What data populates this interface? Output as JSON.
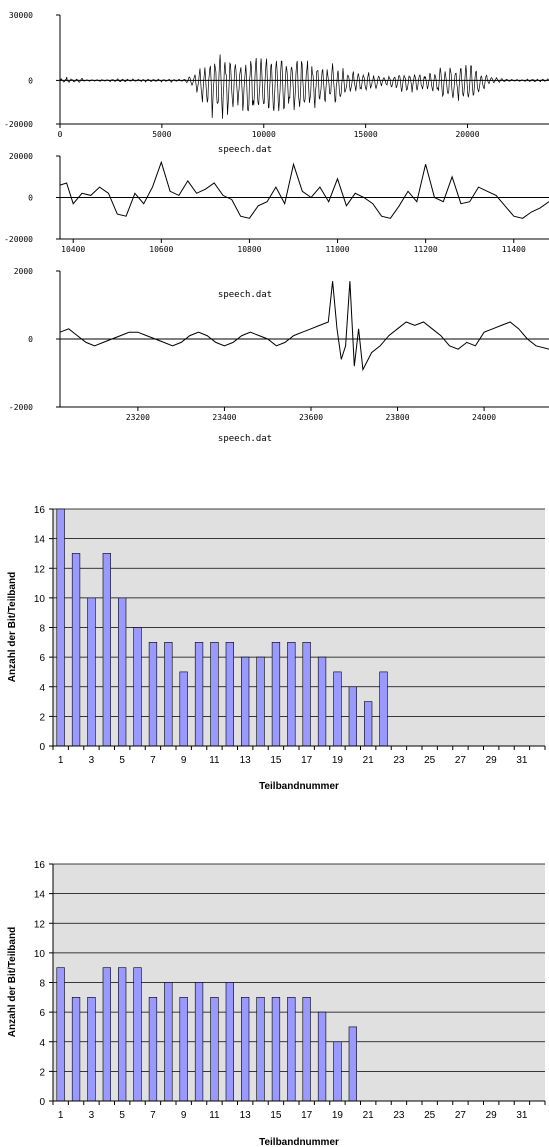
{
  "chart_data": [
    {
      "type": "line",
      "xlabel": "speech.dat",
      "ylabel": "",
      "xlim": [
        0,
        24000
      ],
      "ylim": [
        -20000,
        30000
      ],
      "x_ticks": [
        "0",
        "5000",
        "10000",
        "15000",
        "20000"
      ],
      "y_ticks": [
        "30000",
        "0",
        "-20000"
      ],
      "series_description_points": [
        [
          0,
          0
        ],
        [
          1500,
          400
        ],
        [
          3000,
          0
        ],
        [
          4500,
          0
        ],
        [
          6000,
          0
        ],
        [
          6500,
          3000
        ],
        [
          7500,
          15000
        ],
        [
          8500,
          12000
        ],
        [
          9500,
          14000
        ],
        [
          10500,
          12000
        ],
        [
          11500,
          13000
        ],
        [
          12500,
          10000
        ],
        [
          13500,
          9000
        ],
        [
          14500,
          4000
        ],
        [
          15000,
          5000
        ],
        [
          16000,
          2000
        ],
        [
          17000,
          5000
        ],
        [
          18000,
          4000
        ],
        [
          19000,
          8000
        ],
        [
          20000,
          9000
        ],
        [
          20500,
          7000
        ],
        [
          21000,
          2000
        ],
        [
          22000,
          500
        ],
        [
          24000,
          0
        ]
      ]
    },
    {
      "type": "line",
      "xlabel": "speech.dat",
      "ylabel": "",
      "xlim": [
        10370,
        11480
      ],
      "ylim": [
        -20000,
        20000
      ],
      "x_ticks": [
        "10400",
        "10600",
        "10800",
        "11000",
        "11200",
        "11400"
      ],
      "y_ticks": [
        "20000",
        "0",
        "-20000"
      ],
      "x": [
        10370,
        10385,
        10400,
        10420,
        10440,
        10460,
        10480,
        10500,
        10520,
        10540,
        10560,
        10580,
        10600,
        10620,
        10640,
        10660,
        10680,
        10700,
        10720,
        10740,
        10760,
        10780,
        10800,
        10820,
        10840,
        10860,
        10880,
        10900,
        10920,
        10940,
        10960,
        10980,
        11000,
        11020,
        11040,
        11060,
        11080,
        11100,
        11120,
        11140,
        11160,
        11180,
        11200,
        11220,
        11240,
        11260,
        11280,
        11300,
        11320,
        11340,
        11360,
        11380,
        11400,
        11420,
        11440,
        11460,
        11480
      ],
      "y": [
        6000,
        7000,
        -3000,
        2000,
        1000,
        5000,
        2000,
        -8000,
        -9000,
        2000,
        -3000,
        5000,
        17000,
        3000,
        1000,
        8000,
        2000,
        4000,
        7000,
        1000,
        -1000,
        -9000,
        -10000,
        -4000,
        -2000,
        5000,
        -3000,
        16000,
        3000,
        0,
        5000,
        -2000,
        9000,
        -4000,
        2000,
        0,
        -3000,
        -9000,
        -10000,
        -4000,
        3000,
        -2000,
        16000,
        0,
        -2000,
        10000,
        -3000,
        -2000,
        5000,
        3000,
        1000,
        -4000,
        -9000,
        -10000,
        -7000,
        -5000,
        -2000
      ]
    },
    {
      "type": "line",
      "xlabel": "speech.dat",
      "ylabel": "",
      "xlim": [
        23020,
        24150
      ],
      "ylim": [
        -2000,
        2000
      ],
      "x_ticks": [
        "23200",
        "23400",
        "23600",
        "23800",
        "24000"
      ],
      "y_ticks": [
        "2000",
        "0",
        "-2000"
      ],
      "x": [
        23020,
        23040,
        23060,
        23080,
        23100,
        23120,
        23140,
        23160,
        23180,
        23200,
        23220,
        23240,
        23260,
        23280,
        23300,
        23320,
        23340,
        23360,
        23380,
        23400,
        23420,
        23440,
        23460,
        23480,
        23500,
        23520,
        23540,
        23560,
        23580,
        23600,
        23620,
        23640,
        23650,
        23660,
        23670,
        23680,
        23690,
        23700,
        23710,
        23720,
        23740,
        23760,
        23780,
        23800,
        23820,
        23840,
        23860,
        23880,
        23900,
        23920,
        23940,
        23960,
        23980,
        24000,
        24020,
        24040,
        24060,
        24080,
        24100,
        24120,
        24150
      ],
      "y": [
        200,
        300,
        100,
        -100,
        -200,
        -100,
        0,
        100,
        200,
        200,
        100,
        0,
        -100,
        -200,
        -100,
        100,
        200,
        100,
        -100,
        -200,
        -100,
        100,
        200,
        100,
        0,
        -200,
        -100,
        100,
        200,
        300,
        400,
        500,
        1700,
        300,
        -600,
        -200,
        1700,
        -800,
        300,
        -900,
        -400,
        -200,
        100,
        300,
        500,
        400,
        500,
        300,
        100,
        -200,
        -300,
        -100,
        -200,
        200,
        300,
        400,
        500,
        300,
        0,
        -200,
        -300
      ]
    },
    {
      "type": "bar",
      "title": "",
      "xlabel": "Teilbandnummer",
      "ylabel": "Anzahl der Bit/Teilband",
      "ylim": [
        0,
        16
      ],
      "y_ticks": [
        "0",
        "2",
        "4",
        "6",
        "8",
        "10",
        "12",
        "14",
        "16"
      ],
      "x_ticks": [
        "1",
        "3",
        "5",
        "7",
        "9",
        "11",
        "13",
        "15",
        "17",
        "19",
        "21",
        "23",
        "25",
        "27",
        "29",
        "31"
      ],
      "categories": [
        "1",
        "2",
        "3",
        "4",
        "5",
        "6",
        "7",
        "8",
        "9",
        "10",
        "11",
        "12",
        "13",
        "14",
        "15",
        "16",
        "17",
        "18",
        "19",
        "20",
        "21",
        "22",
        "23",
        "24",
        "25",
        "26",
        "27",
        "28",
        "29",
        "30",
        "31",
        "32"
      ],
      "values": [
        16,
        13,
        10,
        13,
        10,
        8,
        7,
        7,
        5,
        7,
        7,
        7,
        6,
        6,
        7,
        7,
        7,
        6,
        5,
        4,
        3,
        5,
        0,
        0,
        0,
        0,
        0,
        0,
        0,
        0,
        0,
        0
      ]
    },
    {
      "type": "bar",
      "title": "",
      "xlabel": "Teilbandnummer",
      "ylabel": "Anzahl der Bit/Teilband",
      "ylim": [
        0,
        16
      ],
      "y_ticks": [
        "0",
        "2",
        "4",
        "6",
        "8",
        "10",
        "12",
        "14",
        "16"
      ],
      "x_ticks": [
        "1",
        "3",
        "5",
        "7",
        "9",
        "11",
        "13",
        "15",
        "17",
        "19",
        "21",
        "23",
        "25",
        "27",
        "29",
        "31"
      ],
      "categories": [
        "1",
        "2",
        "3",
        "4",
        "5",
        "6",
        "7",
        "8",
        "9",
        "10",
        "11",
        "12",
        "13",
        "14",
        "15",
        "16",
        "17",
        "18",
        "19",
        "20",
        "21",
        "22",
        "23",
        "24",
        "25",
        "26",
        "27",
        "28",
        "29",
        "30",
        "31",
        "32"
      ],
      "values": [
        9,
        7,
        7,
        9,
        9,
        9,
        7,
        8,
        7,
        8,
        7,
        8,
        7,
        7,
        7,
        7,
        7,
        6,
        4,
        5,
        0,
        0,
        0,
        0,
        0,
        0,
        0,
        0,
        0,
        0,
        0,
        0
      ]
    }
  ],
  "colors": {
    "bar_fill": "#9999ff",
    "bar_stroke": "#000000",
    "plot_bg": "#e0e0e0",
    "line": "#000000"
  }
}
